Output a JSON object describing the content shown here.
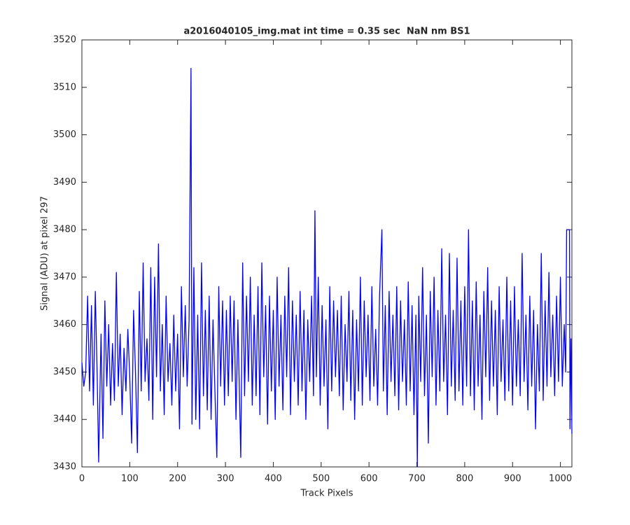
{
  "chart_data": {
    "type": "line",
    "title": "a2016040105_img.mat int time = 0.35 sec  NaN nm BS1",
    "x_label": "Track Pixels",
    "y_label": "Signal (ADU) at pixel 297",
    "xlim": [
      0,
      1024
    ],
    "ylim": [
      3430,
      3520
    ],
    "xticks": [
      0,
      100,
      200,
      300,
      400,
      500,
      600,
      700,
      800,
      900,
      1000
    ],
    "yticks": [
      3430,
      3440,
      3450,
      3460,
      3470,
      3480,
      3490,
      3500,
      3510,
      3520
    ],
    "grid": false,
    "series": [
      {
        "color": "#0000ff",
        "x": [
          0,
          4,
          8,
          12,
          16,
          20,
          24,
          28,
          32,
          35,
          40,
          44,
          48,
          52,
          56,
          60,
          64,
          68,
          72,
          76,
          80,
          84,
          88,
          92,
          96,
          100,
          104,
          108,
          112,
          116,
          120,
          124,
          128,
          132,
          136,
          140,
          144,
          148,
          152,
          156,
          160,
          164,
          168,
          172,
          176,
          180,
          184,
          188,
          192,
          196,
          200,
          204,
          208,
          212,
          216,
          220,
          224,
          228,
          230,
          234,
          238,
          242,
          246,
          250,
          254,
          258,
          262,
          266,
          270,
          274,
          278,
          282,
          286,
          290,
          294,
          298,
          302,
          306,
          310,
          314,
          318,
          322,
          326,
          332,
          336,
          340,
          344,
          348,
          352,
          356,
          360,
          364,
          368,
          372,
          376,
          380,
          384,
          388,
          392,
          396,
          400,
          404,
          408,
          412,
          416,
          420,
          424,
          428,
          432,
          436,
          440,
          444,
          448,
          452,
          456,
          460,
          464,
          468,
          472,
          476,
          480,
          484,
          487,
          490,
          494,
          498,
          502,
          506,
          510,
          514,
          518,
          522,
          526,
          530,
          534,
          538,
          542,
          546,
          550,
          554,
          558,
          562,
          566,
          570,
          574,
          578,
          582,
          586,
          590,
          594,
          598,
          602,
          606,
          610,
          614,
          618,
          622,
          627,
          630,
          634,
          638,
          642,
          646,
          650,
          654,
          658,
          662,
          666,
          670,
          674,
          678,
          682,
          686,
          690,
          694,
          698,
          701,
          704,
          708,
          712,
          716,
          720,
          724,
          728,
          732,
          736,
          740,
          744,
          748,
          752,
          756,
          760,
          764,
          768,
          772,
          776,
          780,
          784,
          788,
          792,
          796,
          800,
          804,
          808,
          812,
          816,
          820,
          824,
          828,
          832,
          836,
          840,
          844,
          848,
          852,
          856,
          860,
          864,
          868,
          872,
          876,
          880,
          884,
          888,
          892,
          896,
          900,
          904,
          908,
          912,
          916,
          920,
          924,
          928,
          932,
          936,
          940,
          944,
          948,
          952,
          956,
          960,
          964,
          968,
          972,
          976,
          980,
          984,
          988,
          992,
          996,
          1000,
          1004,
          1008,
          1011,
          1013,
          1019,
          1020,
          1022,
          1024
        ],
        "values": [
          3452,
          3447,
          3450,
          3466,
          3446,
          3464,
          3443,
          3467,
          3449,
          3431,
          3458,
          3436,
          3465,
          3447,
          3460,
          3443,
          3456,
          3444,
          3471,
          3447,
          3458,
          3441,
          3455,
          3446,
          3459,
          3449,
          3435,
          3463,
          3450,
          3433,
          3467,
          3446,
          3473,
          3448,
          3457,
          3444,
          3472,
          3440,
          3470,
          3449,
          3477,
          3446,
          3460,
          3441,
          3466,
          3448,
          3456,
          3443,
          3462,
          3446,
          3458,
          3438,
          3468,
          3449,
          3464,
          3447,
          3461,
          3514,
          3439,
          3472,
          3440,
          3462,
          3438,
          3473,
          3445,
          3463,
          3442,
          3466,
          3440,
          3461,
          3446,
          3432,
          3468,
          3447,
          3465,
          3443,
          3463,
          3445,
          3466,
          3448,
          3465,
          3440,
          3461,
          3432,
          3473,
          3445,
          3466,
          3448,
          3470,
          3443,
          3462,
          3445,
          3468,
          3441,
          3473,
          3449,
          3464,
          3439,
          3466,
          3446,
          3463,
          3440,
          3470,
          3447,
          3462,
          3442,
          3466,
          3449,
          3472,
          3441,
          3465,
          3448,
          3462,
          3443,
          3467,
          3446,
          3463,
          3440,
          3461,
          3448,
          3466,
          3445,
          3484,
          3449,
          3470,
          3443,
          3464,
          3447,
          3461,
          3438,
          3468,
          3446,
          3465,
          3449,
          3463,
          3445,
          3466,
          3442,
          3460,
          3448,
          3467,
          3444,
          3463,
          3440,
          3461,
          3446,
          3470,
          3443,
          3465,
          3449,
          3462,
          3444,
          3468,
          3447,
          3459,
          3443,
          3466,
          3480,
          3446,
          3464,
          3441,
          3467,
          3448,
          3462,
          3445,
          3468,
          3442,
          3465,
          3448,
          3461,
          3443,
          3469,
          3446,
          3464,
          3441,
          3462,
          3430,
          3466,
          3448,
          3472,
          3445,
          3462,
          3435,
          3467,
          3449,
          3470,
          3443,
          3463,
          3446,
          3476,
          3448,
          3462,
          3441,
          3475,
          3447,
          3463,
          3444,
          3474,
          3446,
          3465,
          3443,
          3468,
          3447,
          3480,
          3445,
          3465,
          3442,
          3469,
          3447,
          3462,
          3440,
          3467,
          3449,
          3472,
          3444,
          3465,
          3447,
          3463,
          3441,
          3468,
          3448,
          3461,
          3444,
          3470,
          3446,
          3465,
          3443,
          3468,
          3447,
          3461,
          3445,
          3475,
          3448,
          3462,
          3442,
          3466,
          3447,
          3463,
          3438,
          3460,
          3446,
          3475,
          3444,
          3465,
          3447,
          3471,
          3449,
          3462,
          3445,
          3466,
          3448,
          3470,
          3447,
          3460,
          3450,
          3480,
          3480,
          3438,
          3457,
          3437
        ]
      }
    ]
  }
}
